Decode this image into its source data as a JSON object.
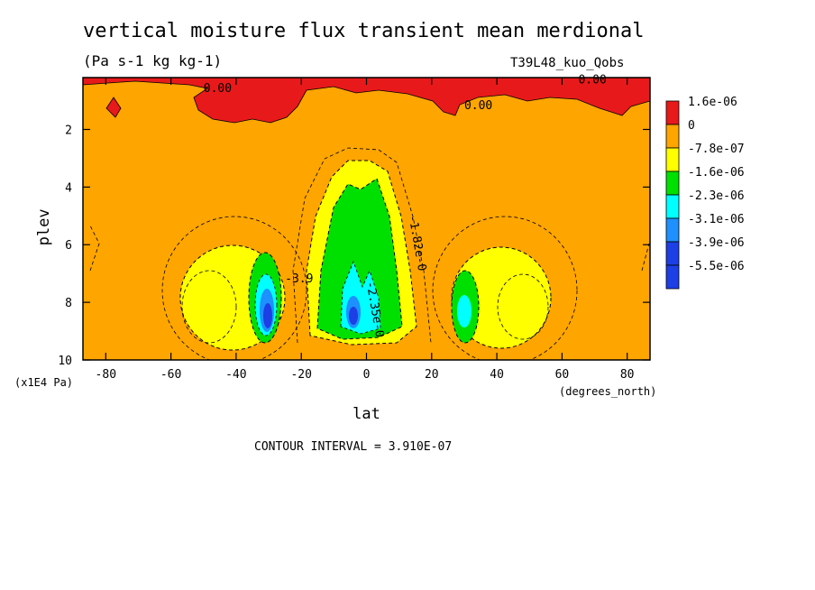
{
  "header": {
    "title": "vertical moisture flux transient mean merdional",
    "units": "(Pa s-1 kg kg-1)",
    "run": "T39L48_kuo_Qobs"
  },
  "footer": {
    "contour_interval": "CONTOUR INTERVAL = 3.910E-07"
  },
  "chart_data": {
    "type": "heatmap",
    "title": "vertical moisture flux transient mean merdional",
    "xlabel": "lat",
    "x_units": "(degrees_north)",
    "ylabel": "plev",
    "y_units": "(x1E4 Pa)",
    "xlim": [
      -87,
      87
    ],
    "ylim": [
      10,
      0.2
    ],
    "x_ticks": [
      -80,
      -60,
      -40,
      -20,
      0,
      20,
      40,
      60,
      80
    ],
    "y_ticks": [
      2,
      4,
      6,
      8,
      10
    ],
    "legend_position": "right",
    "color_levels": [
      {
        "label": "1.6e-06",
        "color": "#e8191a"
      },
      {
        "label": "0",
        "color": "#ffa500"
      },
      {
        "label": "-7.8e-07",
        "color": "#ffff00"
      },
      {
        "label": "-1.6e-06",
        "color": "#00e000"
      },
      {
        "label": "-2.3e-06",
        "color": "#00ffff"
      },
      {
        "label": "-3.1e-06",
        "color": "#1e90ff"
      },
      {
        "label": "-3.9e-06",
        "color": "#1c3fe6"
      },
      {
        "label": "-5.5e-06",
        "color": "#1c3fe6"
      }
    ],
    "contour_labels": [
      {
        "text": "0.00",
        "lat": -50,
        "plev": 0.7
      },
      {
        "text": "0.00",
        "lat": 65,
        "plev": 0.4
      },
      {
        "text": "0.00",
        "lat": 30,
        "plev": 1.3
      },
      {
        "text": "-1.82e-0",
        "lat": 13,
        "plev": 5.0
      },
      {
        "text": "-2.35e-0",
        "lat": 0,
        "plev": 7.3
      },
      {
        "text": "-3.9",
        "lat": -25,
        "plev": 7.3
      }
    ],
    "contour_interval": 3.91e-07,
    "grid": false
  }
}
